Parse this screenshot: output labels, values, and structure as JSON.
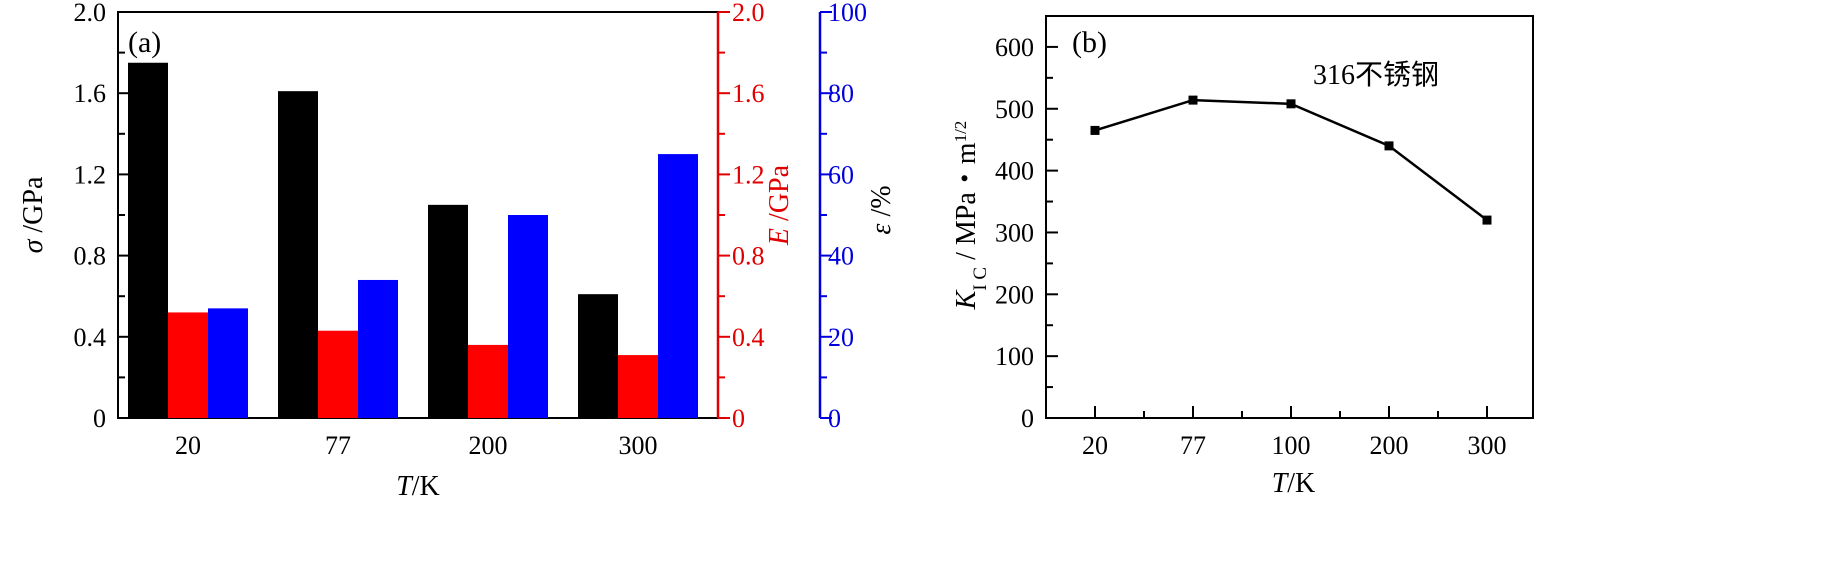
{
  "chart_data": [
    {
      "panel": "(a)",
      "type": "bar",
      "categories": [
        "20",
        "77",
        "200",
        "300"
      ],
      "xlabel": {
        "var": "T",
        "unit": "/K"
      },
      "series": [
        {
          "values": [
            1.75,
            1.61,
            1.05,
            0.61
          ],
          "color": "#000000",
          "axis": "left"
        },
        {
          "values": [
            0.52,
            0.43,
            0.36,
            0.31
          ],
          "color": "#ff0000",
          "axis": "right1"
        },
        {
          "values": [
            27,
            34,
            50,
            65
          ],
          "color": "#0000ff",
          "axis": "right2"
        }
      ],
      "axes": {
        "left": {
          "label": {
            "var": "σ",
            "unit": " /GPa"
          },
          "ylim": [
            0,
            2.0
          ],
          "ticks": [
            "0",
            "0.4",
            "0.8",
            "1.2",
            "1.6",
            "2.0"
          ],
          "color": "#000000"
        },
        "right1": {
          "label": {
            "var": "E",
            "unit": " /GPa"
          },
          "ylim": [
            0,
            2.0
          ],
          "ticks": [
            "0",
            "0.4",
            "0.8",
            "1.2",
            "1.6",
            "2.0"
          ],
          "color": "#e00000"
        },
        "right2": {
          "label": {
            "var": "ε",
            "unit": " /%"
          },
          "ylim": [
            0,
            100
          ],
          "ticks": [
            "0",
            "20",
            "40",
            "60",
            "80",
            "100"
          ],
          "color": "#0000dd"
        }
      },
      "grid": false
    },
    {
      "panel": "(b)",
      "type": "line",
      "categories": [
        "20",
        "77",
        "100",
        "200",
        "300"
      ],
      "values": [
        465,
        514,
        508,
        440,
        320
      ],
      "annotation": "316不锈钢",
      "xlabel": {
        "var": "T",
        "unit": "/K"
      },
      "ylabel": {
        "var": "K",
        "sub": "I C",
        "unit": " / MPa・m",
        "sup": "1/2"
      },
      "ylim": [
        0,
        650
      ],
      "yticks": [
        "0",
        "100",
        "200",
        "300",
        "400",
        "500",
        "600"
      ],
      "color": "#000000",
      "grid": false
    }
  ]
}
